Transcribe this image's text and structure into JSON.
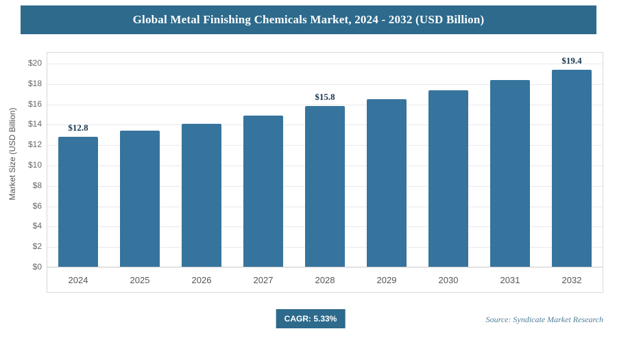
{
  "header": {
    "title": "Global Metal Finishing Chemicals Market, 2024 - 2032 (USD Billion)"
  },
  "chart_data": {
    "type": "bar",
    "title": "Global Metal Finishing Chemicals Market, 2024 - 2032 (USD Billion)",
    "categories": [
      "2024",
      "2025",
      "2026",
      "2027",
      "2028",
      "2029",
      "2030",
      "2031",
      "2032"
    ],
    "values": [
      12.8,
      13.4,
      14.1,
      14.9,
      15.8,
      16.5,
      17.4,
      18.4,
      19.4
    ],
    "value_labels": [
      "$12.8",
      "",
      "",
      "",
      "$15.8",
      "",
      "",
      "",
      "$19.4"
    ],
    "xlabel": "",
    "ylabel": "Market Size (USD Billion)",
    "ylim": [
      0,
      20
    ],
    "ytick_step": 2,
    "ytick_prefix": "$",
    "grid": true,
    "legend": "none",
    "bar_color": "#36749d"
  },
  "footer": {
    "cagr_label": "CAGR: 5.33%",
    "source": "Source: Syndicate Market Research"
  },
  "colors": {
    "header_bg": "#2d6a8c",
    "bar": "#36749d",
    "badge_bg": "#2d6a8c"
  }
}
